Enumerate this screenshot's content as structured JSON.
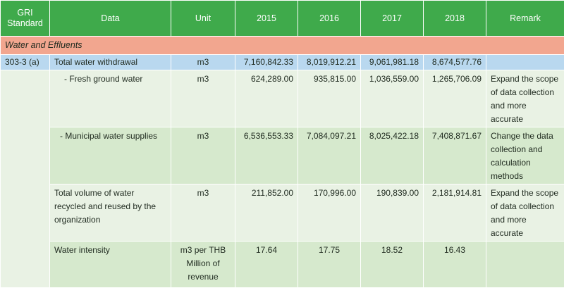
{
  "headers": {
    "standard": "GRI Standard",
    "data": "Data",
    "unit": "Unit",
    "y2015": "2015",
    "y2016": "2016",
    "y2017": "2017",
    "y2018": "2018",
    "remark": "Remark"
  },
  "section": "Water and Effluents",
  "rows": [
    {
      "standard": "303-3 (a)",
      "data": "Total water withdrawal",
      "unit": "m3",
      "y2015": "7,160,842.33",
      "y2016": "8,019,912.21",
      "y2017": "9,061,981.18",
      "y2018": "8,674,577.76",
      "remark": ""
    },
    {
      "data": "- Fresh ground water",
      "unit": "m3",
      "y2015": "624,289.00",
      "y2016": "935,815.00",
      "y2017": "1,036,559.00",
      "y2018": "1,265,706.09",
      "remark": "Expand the scope of data collection and more accurate"
    },
    {
      "data": "- Municipal water supplies",
      "unit": "m3",
      "y2015": "6,536,553.33",
      "y2016": "7,084,097.21",
      "y2017": "8,025,422.18",
      "y2018": "7,408,871.67",
      "remark": "Change the data collection and calculation methods"
    },
    {
      "data": "Total volume of water recycled and reused by the organization",
      "unit": "m3",
      "y2015": "211,852.00",
      "y2016": "170,996.00",
      "y2017": "190,839.00",
      "y2018": "2,181,914.81",
      "remark": "Expand the scope of data collection and more accurate"
    },
    {
      "data": "Water intensity",
      "unit": "m3 per THB Million of revenue",
      "y2015": "17.64",
      "y2016": "17.75",
      "y2017": "18.52",
      "y2018": "16.43",
      "remark": ""
    }
  ]
}
